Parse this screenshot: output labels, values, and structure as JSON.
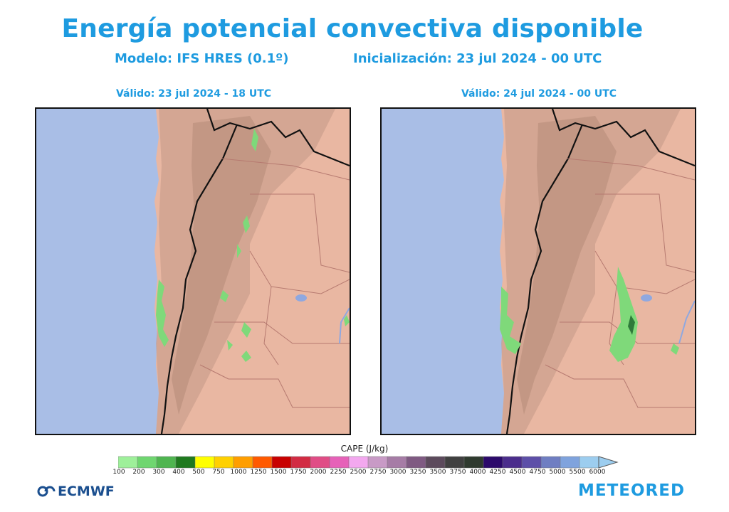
{
  "header": {
    "title": "Energía potencial convectiva disponible",
    "model": "Modelo: IFS HRES (0.1º)",
    "init": "Inicialización: 23 jul 2024 - 00 UTC"
  },
  "panels": [
    {
      "valid": "Válido: 23 jul 2024 - 18 UTC"
    },
    {
      "valid": "Válido: 24 jul 2024 - 00 UTC"
    }
  ],
  "colorbar": {
    "title": "CAPE (J/kg)",
    "ticks": [
      "100",
      "200",
      "300",
      "400",
      "500",
      "750",
      "1000",
      "1250",
      "1500",
      "1750",
      "2000",
      "2250",
      "2500",
      "2750",
      "3000",
      "3250",
      "3500",
      "3750",
      "4000",
      "4250",
      "4500",
      "4750",
      "5000",
      "5500",
      "6000"
    ],
    "colors": [
      "#9ef09a",
      "#6fd670",
      "#4fb550",
      "#1f7a1f",
      "#ffff00",
      "#ffd000",
      "#ff9e00",
      "#ff5a00",
      "#c80000",
      "#d22b43",
      "#e04d86",
      "#e661b8",
      "#f3a8ef",
      "#c89ac6",
      "#a67ca6",
      "#7f5a82",
      "#5c4a5c",
      "#404040",
      "#2f3a2f",
      "#2c0a6b",
      "#4b2d8c",
      "#5d4fa8",
      "#6f7ec2",
      "#7fa3dd",
      "#9ccdef"
    ]
  },
  "logos": {
    "left": "ECMWF",
    "right": "METEORED"
  },
  "colors": {
    "accent": "#1e9be0",
    "ocean": "#a9bee6",
    "land": "#e9b7a2"
  }
}
